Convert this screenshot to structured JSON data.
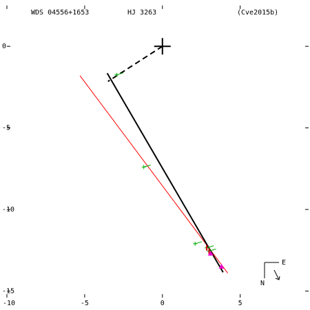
{
  "header": {
    "wds_id": "WDS 04556+1653",
    "discoverer": "HJ 3263",
    "reference": "(Cve2015b)"
  },
  "compass": {
    "east_label": "E",
    "north_label": "N"
  },
  "chart_data": {
    "type": "scatter",
    "title": "",
    "xlabel": "",
    "ylabel": "",
    "xlim": [
      -10,
      9.4
    ],
    "ylim": [
      -15.4,
      2.5
    ],
    "x_ticks": [
      -10,
      -5,
      0,
      5
    ],
    "y_ticks": [
      0,
      -5,
      -10,
      -15
    ],
    "grid": false,
    "primary": {
      "x": 0,
      "y": 0
    },
    "orbit": [
      {
        "x": -3.55,
        "y": -1.65
      },
      {
        "x": 3.9,
        "y": -13.85
      }
    ],
    "node_line": [
      {
        "x": -5.3,
        "y": -1.8
      },
      {
        "x": 4.2,
        "y": -13.9
      }
    ],
    "periastron_line": [
      {
        "x": 0,
        "y": 0
      },
      {
        "x": -3.5,
        "y": -2.15
      }
    ],
    "observations": [
      {
        "x": -2.95,
        "y": -1.75
      },
      {
        "x": -1.2,
        "y": -7.4
      },
      {
        "x": 2.1,
        "y": -12.1
      },
      {
        "x": 2.85,
        "y": -12.35
      },
      {
        "x": 3.0,
        "y": -12.55
      }
    ],
    "highlights": [
      {
        "x": 3.1,
        "y": -12.7
      },
      {
        "x": 3.8,
        "y": -13.5
      }
    ],
    "colors": {
      "orbit": "#000000",
      "node_line": "#ff0000",
      "observation": "#00aa00",
      "highlight": "#ee00cc",
      "residual_mark": "#cc0000"
    }
  }
}
